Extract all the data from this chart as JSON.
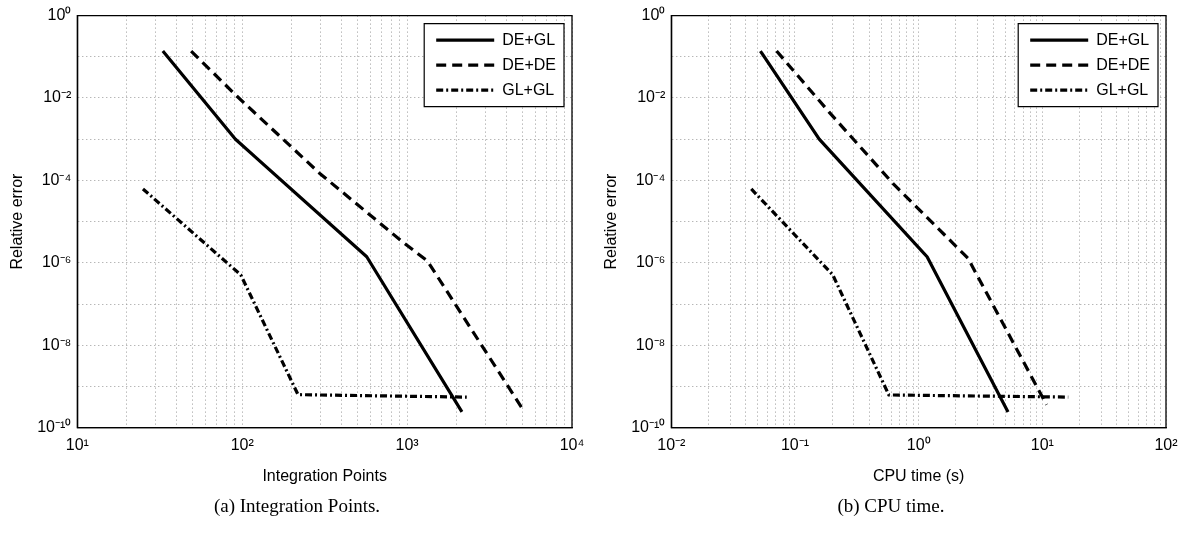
{
  "chart_data": [
    {
      "type": "line",
      "xlabel": "Integration Points",
      "ylabel": "Relative error",
      "log": "xy",
      "grid": true,
      "legend": "top right",
      "marker": "none",
      "xlim": [
        10,
        10000
      ],
      "ylim": [
        1e-10,
        1
      ],
      "xticks": [
        {
          "value": 10,
          "label": "10¹"
        },
        {
          "value": 20,
          "label": null
        },
        {
          "value": 30,
          "label": null
        },
        {
          "value": 40,
          "label": null
        },
        {
          "value": 50,
          "label": null
        },
        {
          "value": 60,
          "label": null
        },
        {
          "value": 70,
          "label": null
        },
        {
          "value": 80,
          "label": null
        },
        {
          "value": 90,
          "label": null
        },
        {
          "value": 100,
          "label": "10²"
        },
        {
          "value": 200,
          "label": null
        },
        {
          "value": 300,
          "label": null
        },
        {
          "value": 400,
          "label": null
        },
        {
          "value": 500,
          "label": null
        },
        {
          "value": 600,
          "label": null
        },
        {
          "value": 700,
          "label": null
        },
        {
          "value": 800,
          "label": null
        },
        {
          "value": 900,
          "label": null
        },
        {
          "value": 1000,
          "label": "10³"
        },
        {
          "value": 2000,
          "label": null
        },
        {
          "value": 3000,
          "label": null
        },
        {
          "value": 4000,
          "label": null
        },
        {
          "value": 5000,
          "label": null
        },
        {
          "value": 6000,
          "label": null
        },
        {
          "value": 7000,
          "label": null
        },
        {
          "value": 8000,
          "label": null
        },
        {
          "value": 9000,
          "label": null
        },
        {
          "value": 10000,
          "label": "10⁴"
        }
      ],
      "yticks": [
        {
          "value": 1e-10,
          "label": "10⁻¹⁰"
        },
        {
          "value": 1e-09,
          "label": null
        },
        {
          "value": 1e-08,
          "label": "10⁻⁸"
        },
        {
          "value": 1e-07,
          "label": null
        },
        {
          "value": 1e-06,
          "label": "10⁻⁶"
        },
        {
          "value": 1e-05,
          "label": null
        },
        {
          "value": 0.0001,
          "label": "10⁻⁴"
        },
        {
          "value": 0.001,
          "label": null
        },
        {
          "value": 0.01,
          "label": "10⁻²"
        },
        {
          "value": 0.1,
          "label": null
        },
        {
          "value": 1,
          "label": "10⁰"
        }
      ],
      "series": [
        {
          "name": "DE+GL",
          "color": "#000000",
          "line_style": "solid",
          "x": [
            33,
            91,
            569,
            2150
          ],
          "values": [
            0.138,
            0.001,
            1.4e-06,
            2.4e-10
          ]
        },
        {
          "name": "DE+DE",
          "color": "#000000",
          "line_style": "dashed",
          "x": [
            49,
            93,
            294,
            931,
            1330,
            5150
          ],
          "values": [
            0.138,
            0.011,
            0.00015,
            3.3e-06,
            1.1e-06,
            2.4e-10
          ]
        },
        {
          "name": "GL+GL",
          "color": "#000000",
          "line_style": "dashdot",
          "x": [
            25,
            98,
            218,
            2300
          ],
          "values": [
            6.2e-05,
            5.1e-07,
            6.3e-10,
            5.5e-10
          ]
        }
      ],
      "annotations": [
        "(a) Integration Points."
      ]
    },
    {
      "type": "line",
      "xlabel": "CPU time (s)",
      "ylabel": "Relative error",
      "log": "xy",
      "grid": true,
      "legend": "top right",
      "marker": "none",
      "xlim": [
        0.01,
        100
      ],
      "ylim": [
        1e-10,
        1
      ],
      "xticks": [
        {
          "value": 0.01,
          "label": "10⁻²"
        },
        {
          "value": 0.02,
          "label": null
        },
        {
          "value": 0.03,
          "label": null
        },
        {
          "value": 0.04,
          "label": null
        },
        {
          "value": 0.05,
          "label": null
        },
        {
          "value": 0.06,
          "label": null
        },
        {
          "value": 0.07,
          "label": null
        },
        {
          "value": 0.08,
          "label": null
        },
        {
          "value": 0.09,
          "label": null
        },
        {
          "value": 0.1,
          "label": "10⁻¹"
        },
        {
          "value": 0.2,
          "label": null
        },
        {
          "value": 0.3,
          "label": null
        },
        {
          "value": 0.4,
          "label": null
        },
        {
          "value": 0.5,
          "label": null
        },
        {
          "value": 0.6,
          "label": null
        },
        {
          "value": 0.7,
          "label": null
        },
        {
          "value": 0.8,
          "label": null
        },
        {
          "value": 0.9,
          "label": null
        },
        {
          "value": 1,
          "label": "10⁰"
        },
        {
          "value": 2,
          "label": null
        },
        {
          "value": 3,
          "label": null
        },
        {
          "value": 4,
          "label": null
        },
        {
          "value": 5,
          "label": null
        },
        {
          "value": 6,
          "label": null
        },
        {
          "value": 7,
          "label": null
        },
        {
          "value": 8,
          "label": null
        },
        {
          "value": 9,
          "label": null
        },
        {
          "value": 10,
          "label": "10¹"
        },
        {
          "value": 20,
          "label": null
        },
        {
          "value": 30,
          "label": null
        },
        {
          "value": 40,
          "label": null
        },
        {
          "value": 50,
          "label": null
        },
        {
          "value": 60,
          "label": null
        },
        {
          "value": 70,
          "label": null
        },
        {
          "value": 80,
          "label": null
        },
        {
          "value": 90,
          "label": null
        },
        {
          "value": 100,
          "label": "10²"
        }
      ],
      "yticks": [
        {
          "value": 1e-10,
          "label": "10⁻¹⁰"
        },
        {
          "value": 1e-09,
          "label": null
        },
        {
          "value": 1e-08,
          "label": "10⁻⁸"
        },
        {
          "value": 1e-07,
          "label": null
        },
        {
          "value": 1e-06,
          "label": "10⁻⁶"
        },
        {
          "value": 1e-05,
          "label": null
        },
        {
          "value": 0.0001,
          "label": "10⁻⁴"
        },
        {
          "value": 0.001,
          "label": null
        },
        {
          "value": 0.01,
          "label": "10⁻²"
        },
        {
          "value": 0.1,
          "label": null
        },
        {
          "value": 1,
          "label": "10⁰"
        }
      ],
      "series": [
        {
          "name": "DE+GL",
          "color": "#000000",
          "line_style": "solid",
          "x": [
            0.0525,
            0.157,
            1.17,
            5.28
          ],
          "values": [
            0.138,
            0.001,
            1.4e-06,
            2.4e-10
          ]
        },
        {
          "name": "DE+DE",
          "color": "#000000",
          "line_style": "dashed",
          "x": [
            0.071,
            0.188,
            0.627,
            2.5,
            10.8
          ],
          "values": [
            0.138,
            0.0046,
            8.1e-05,
            1.3e-06,
            3.6e-10
          ]
        },
        {
          "name": "GL+GL",
          "color": "#000000",
          "line_style": "dashdot",
          "x": [
            0.0443,
            0.202,
            0.574,
            16.2
          ],
          "values": [
            6.2e-05,
            5.1e-07,
            6.2e-10,
            5.5e-10
          ]
        }
      ],
      "annotations": [
        "(b) CPU time."
      ]
    }
  ]
}
